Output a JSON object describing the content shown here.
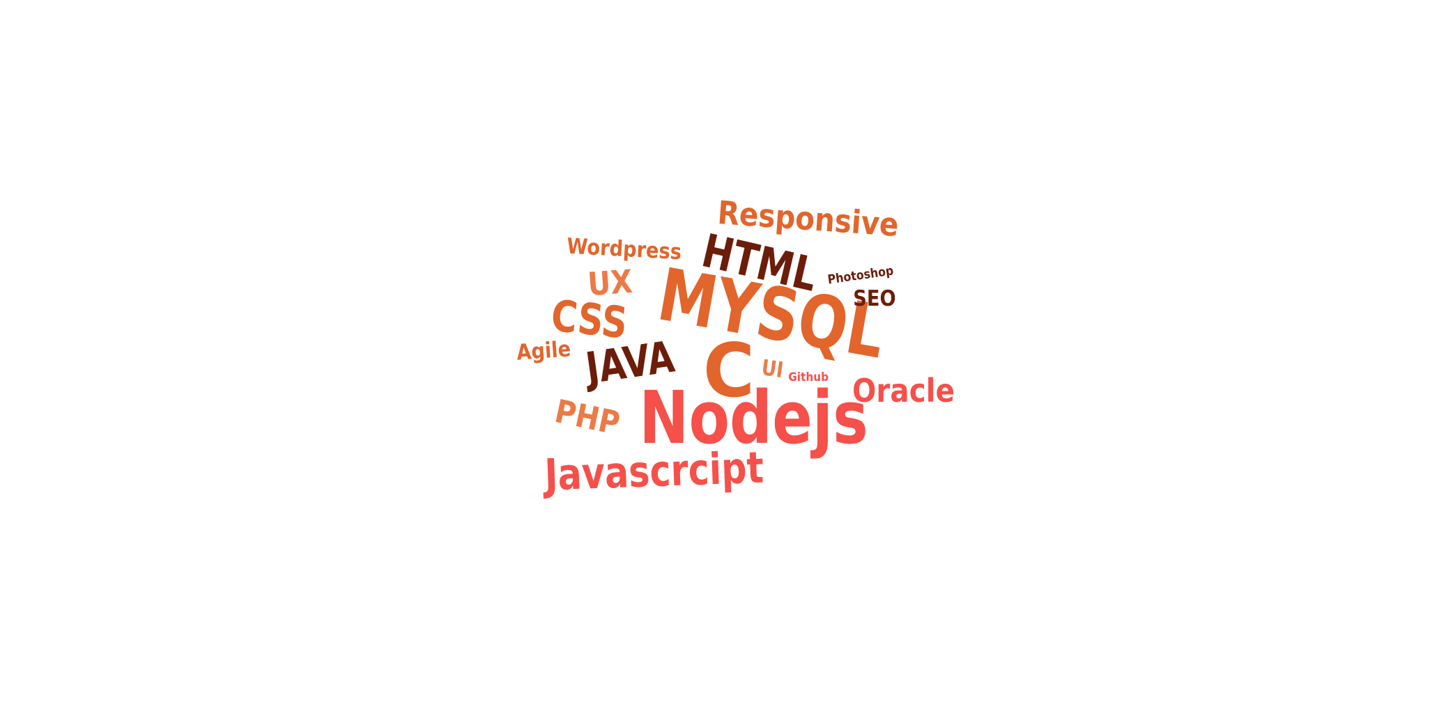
{
  "palette": {
    "coral": "#f5504a",
    "orange": "#e2652c",
    "light_orange": "#ec7a47",
    "brown": "#6b1d09"
  },
  "words": [
    {
      "id": "responsive",
      "text": "Responsive",
      "color": "orange",
      "rotation": 4
    },
    {
      "id": "wordpress",
      "text": "Wordpress",
      "color": "orange",
      "rotation": 3
    },
    {
      "id": "html",
      "text": "HTML",
      "color": "brown",
      "rotation": 13
    },
    {
      "id": "ux",
      "text": "UX",
      "color": "light_orange",
      "rotation": -4
    },
    {
      "id": "mysql",
      "text": "MYSQL",
      "color": "orange",
      "rotation": 10
    },
    {
      "id": "photoshop",
      "text": "Photoshop",
      "color": "brown",
      "rotation": -8
    },
    {
      "id": "seo",
      "text": "SEO",
      "color": "brown",
      "rotation": 0
    },
    {
      "id": "css",
      "text": "CSS",
      "color": "orange",
      "rotation": 6
    },
    {
      "id": "agile",
      "text": "Agile",
      "color": "orange",
      "rotation": -4
    },
    {
      "id": "java",
      "text": "JAVA",
      "color": "brown",
      "rotation": -8
    },
    {
      "id": "c",
      "text": "C",
      "color": "orange",
      "rotation": 0
    },
    {
      "id": "ui",
      "text": "UI",
      "color": "light_orange",
      "rotation": 8
    },
    {
      "id": "github",
      "text": "Github",
      "color": "coral",
      "rotation": 0
    },
    {
      "id": "oracle",
      "text": "Oracle",
      "color": "coral",
      "rotation": 0
    },
    {
      "id": "php",
      "text": "PHP",
      "color": "light_orange",
      "rotation": 12
    },
    {
      "id": "nodejs",
      "text": "Nodejs",
      "color": "coral",
      "rotation": 0
    },
    {
      "id": "javascrcipt",
      "text": "Javascrcipt",
      "color": "coral",
      "rotation": -2
    }
  ]
}
